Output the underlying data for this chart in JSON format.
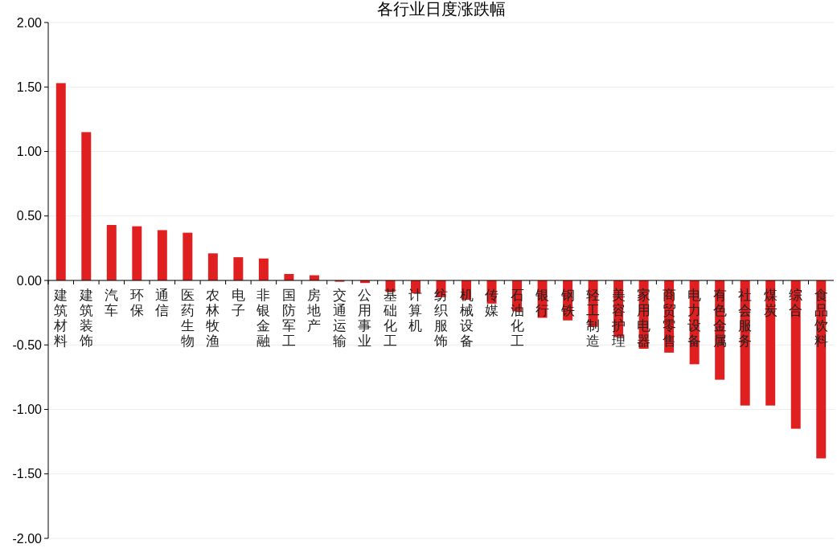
{
  "chart_data": {
    "type": "bar",
    "title": "各行业日度涨跌幅",
    "categories": [
      "建筑材料",
      "建筑装饰",
      "汽车",
      "环保",
      "通信",
      "医药生物",
      "农林牧渔",
      "电子",
      "非银金融",
      "国防军工",
      "房地产",
      "交通运输",
      "公用事业",
      "基础化工",
      "计算机",
      "纺织服饰",
      "机械设备",
      "传媒",
      "石油化工",
      "银行",
      "钢铁",
      "轻工制造",
      "美容护理",
      "家用电器",
      "商贸零售",
      "电力设备",
      "有色金属",
      "社会服务",
      "煤炭",
      "综合",
      "食品饮料"
    ],
    "values": [
      1.53,
      1.15,
      0.43,
      0.42,
      0.39,
      0.37,
      0.21,
      0.18,
      0.17,
      0.05,
      0.04,
      -0.01,
      -0.02,
      -0.09,
      -0.1,
      -0.13,
      -0.15,
      -0.18,
      -0.24,
      -0.29,
      -0.31,
      -0.36,
      -0.44,
      -0.53,
      -0.56,
      -0.65,
      -0.77,
      -0.97,
      -0.97,
      -1.15,
      -1.38
    ],
    "color": "#e02020",
    "ylim": [
      -2,
      2
    ],
    "yticks": [
      {
        "value": -2,
        "label": "-2.00"
      },
      {
        "value": -1.5,
        "label": "-1.50"
      },
      {
        "value": -1,
        "label": "-1.00"
      },
      {
        "value": -0.5,
        "label": "-0.50"
      },
      {
        "value": 0,
        "label": "0.00"
      },
      {
        "value": 0.5,
        "label": "0.50"
      },
      {
        "value": 1,
        "label": "1.00"
      },
      {
        "value": 1.5,
        "label": "1.50"
      },
      {
        "value": 2,
        "label": "2.00"
      }
    ],
    "grid": "y"
  }
}
